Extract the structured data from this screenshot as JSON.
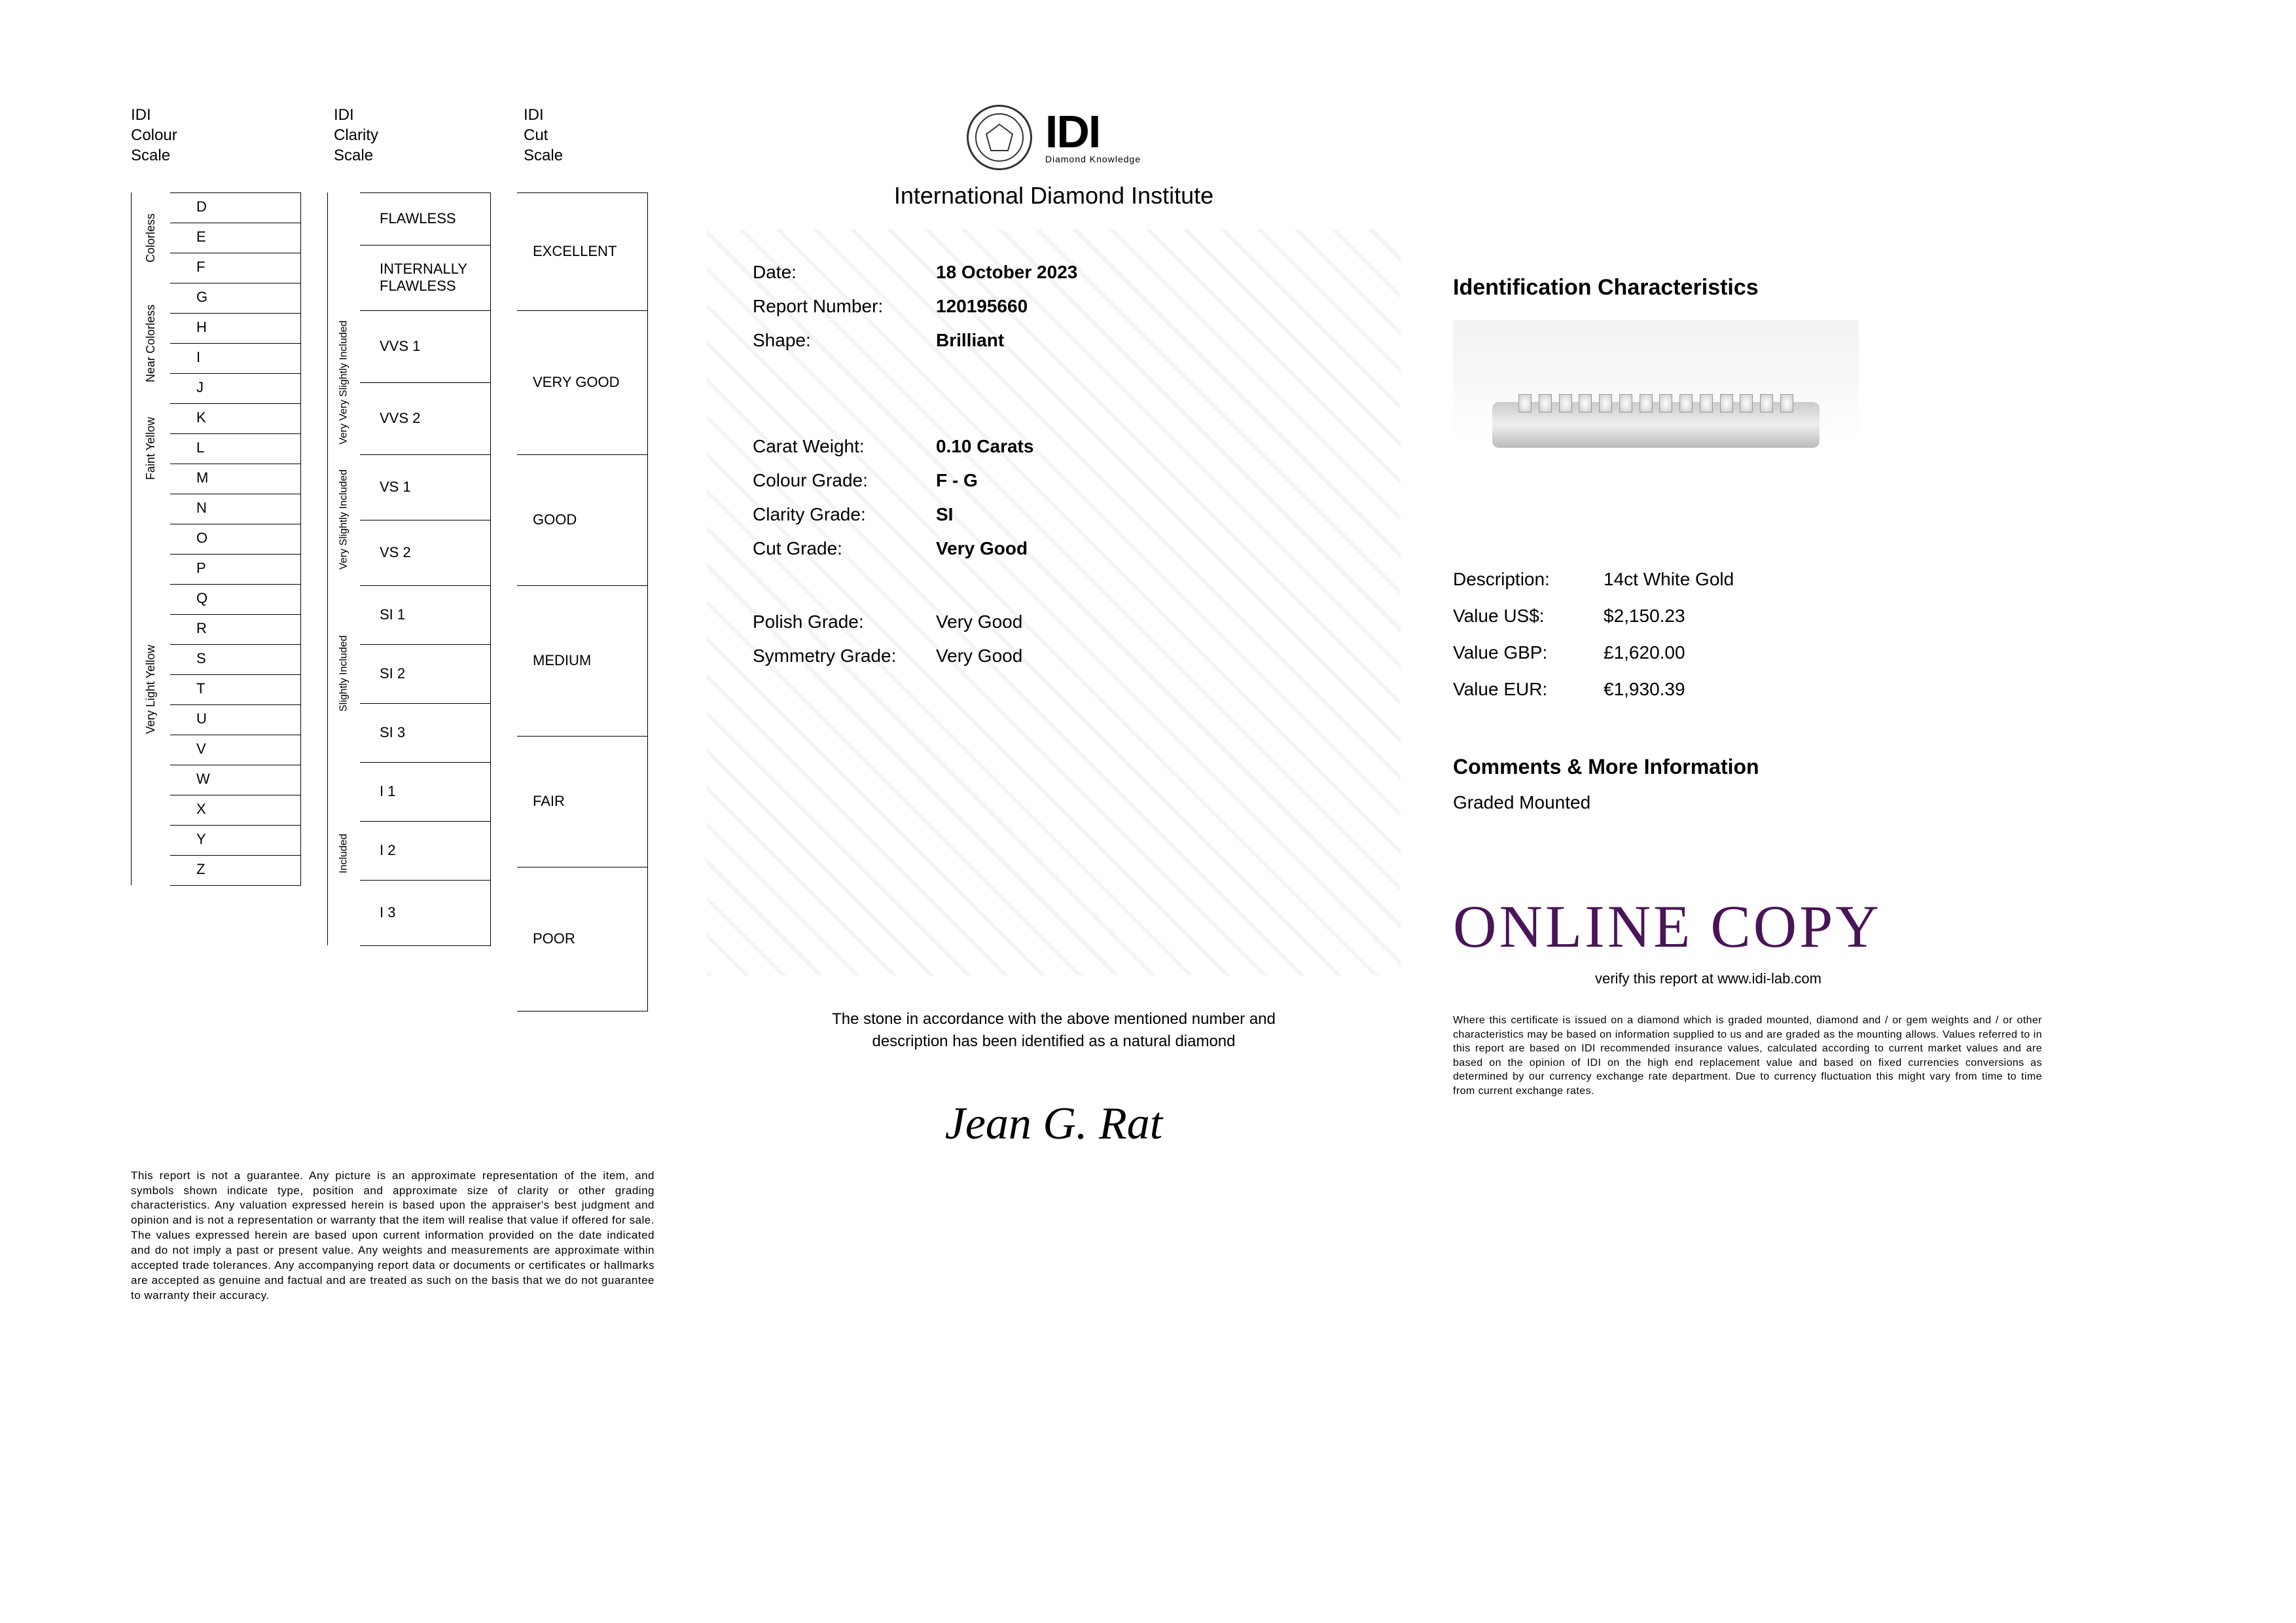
{
  "brand": {
    "acronym": "IDI",
    "tagline": "Diamond Knowledge",
    "full_name": "International Diamond Institute"
  },
  "scale_headers": {
    "colour": "IDI\nColour\nScale",
    "clarity": "IDI\nClarity\nScale",
    "cut": "IDI\nCut\nScale"
  },
  "colour_scale": {
    "groups": [
      {
        "label": "Colorless",
        "grades": [
          "D",
          "E",
          "F"
        ]
      },
      {
        "label": "Near Colorless",
        "grades": [
          "G",
          "H",
          "I",
          "J"
        ]
      },
      {
        "label": "Faint Yellow",
        "grades": [
          "K",
          "L",
          "M"
        ]
      },
      {
        "label": "Very Light Yellow",
        "grades": [
          "N",
          "O",
          "P",
          "Q",
          "R",
          "S",
          "T",
          "U",
          "V",
          "W",
          "X",
          "Y",
          "Z"
        ]
      }
    ]
  },
  "clarity_scale": {
    "groups": [
      {
        "label": "",
        "grades": [
          "FLAWLESS",
          "INTERNALLY FLAWLESS"
        ],
        "heights": [
          80,
          100
        ]
      },
      {
        "label": "Very Very Slightly Included",
        "grades": [
          "VVS 1",
          "VVS 2"
        ],
        "heights": [
          110,
          110
        ]
      },
      {
        "label": "Very Slightly Included",
        "grades": [
          "VS 1",
          "VS 2"
        ],
        "heights": [
          100,
          100
        ]
      },
      {
        "label": "Slightly Included",
        "grades": [
          "SI 1",
          "SI 2",
          "SI 3"
        ],
        "heights": [
          90,
          90,
          90
        ]
      },
      {
        "label": "Included",
        "grades": [
          "I 1",
          "I 2",
          "I 3"
        ],
        "heights": [
          90,
          90,
          100
        ]
      }
    ]
  },
  "cut_scale": {
    "grades": [
      "EXCELLENT",
      "VERY GOOD",
      "GOOD",
      "MEDIUM",
      "FAIR",
      "POOR"
    ],
    "heights": [
      180,
      220,
      200,
      230,
      200,
      220
    ]
  },
  "report": {
    "fields_top": [
      {
        "label": "Date:",
        "value": "18 October 2023"
      },
      {
        "label": "Report Number:",
        "value": "120195660"
      },
      {
        "label": "Shape:",
        "value": "Brilliant"
      }
    ],
    "fields_mid": [
      {
        "label": "Carat Weight:",
        "value": "0.10 Carats"
      },
      {
        "label": "Colour Grade:",
        "value": "F - G"
      },
      {
        "label": "Clarity Grade:",
        "value": "SI"
      },
      {
        "label": "Cut Grade:",
        "value": "Very Good"
      }
    ],
    "fields_bot": [
      {
        "label": "Polish Grade:",
        "value": "Very Good",
        "bold": false
      },
      {
        "label": "Symmetry Grade:",
        "value": "Very Good",
        "bold": false
      }
    ],
    "natural_line1": "The stone in accordance with the above mentioned number and",
    "natural_line2": "description has been identified as a natural diamond",
    "signature": "Jean G. Rat"
  },
  "identification": {
    "title": "Identification Characteristics",
    "rows": [
      {
        "label": "Description:",
        "value": "14ct White Gold"
      },
      {
        "label": "Value US$:",
        "value": "$2,150.23"
      },
      {
        "label": "Value GBP:",
        "value": "£1,620.00"
      },
      {
        "label": "Value EUR:",
        "value": "€1,930.39"
      }
    ]
  },
  "comments": {
    "title": "Comments & More Information",
    "body": "Graded Mounted"
  },
  "online_copy": "ONLINE COPY",
  "verify_text": "verify this report at www.idi-lab.com",
  "disclaimer_left": "This report is not a guarantee. Any picture is an approximate representation of the item, and symbols shown indicate type, position and approximate size of clarity or other grading characteristics. Any valuation expressed herein is based upon the appraiser's best judgment and opinion and is not a representation or warranty that the item will realise that value if offered for sale. The values expressed herein are based upon current information provided on the date indicated and do not imply a past or present value. Any weights and measurements are approximate within accepted trade tolerances. Any accompanying report data or documents or certificates or hallmarks are accepted as genuine and factual and are treated as such on the basis that we do not guarantee to warranty their accuracy.",
  "disclaimer_right": "Where this certificate is issued on a diamond which is graded mounted, diamond and / or gem weights and / or other characteristics may be based on information supplied to us and are graded as the mounting allows. Values referred to in this report are based on IDI recommended insurance values, calculated according to current market values and are based on the opinion of IDI on the high end replacement value and based on fixed currencies conversions as determined by our currency exchange rate department. Due to currency fluctuation this might vary from time to time from current exchange rates.",
  "colors": {
    "online_copy": "#4a1458",
    "text": "#000000",
    "border": "#000000",
    "watermark": "#f4f4f4"
  }
}
